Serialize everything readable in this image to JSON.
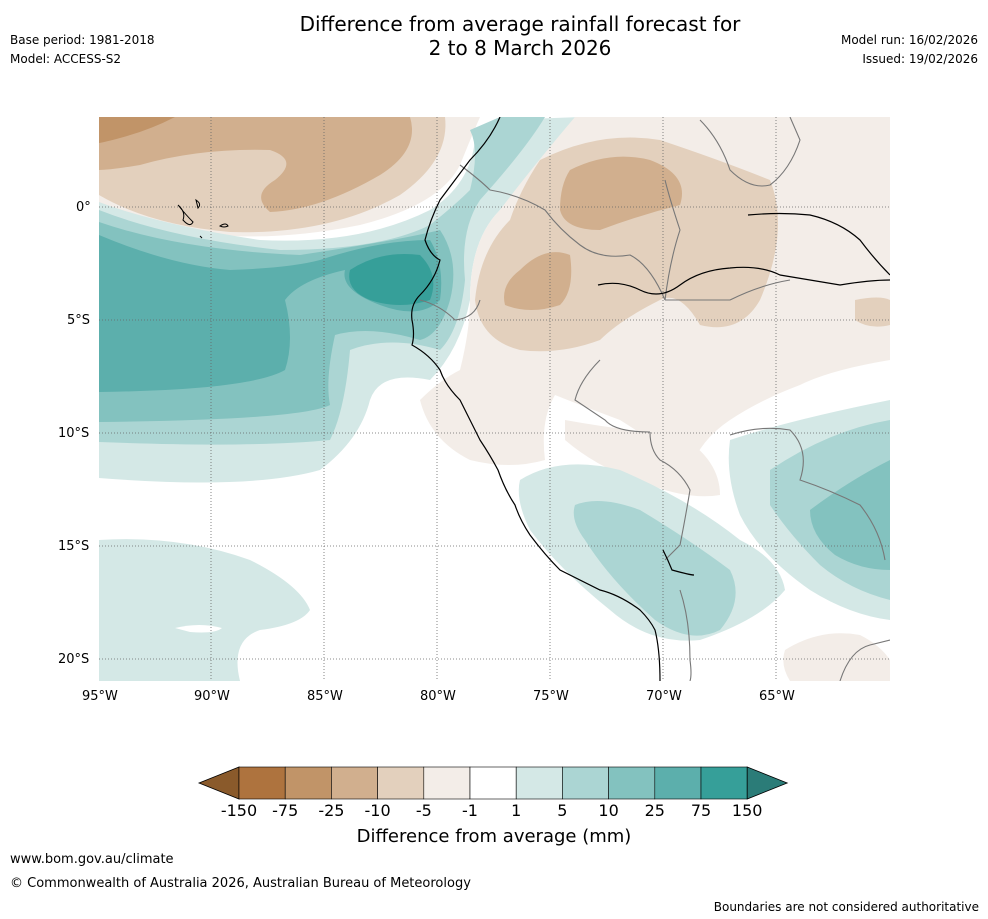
{
  "header": {
    "title_line1": "Difference from average rainfall forecast for",
    "title_line2": "2 to 8 March 2026",
    "base_period": "Base period: 1981-2018",
    "model": "Model: ACCESS-S2",
    "model_run": "Model run: 16/02/2026",
    "issued": "Issued: 19/02/2026"
  },
  "map": {
    "region": "Western South America and eastern Pacific",
    "lat_labels": [
      "0°",
      "5°S",
      "10°S",
      "15°S",
      "20°S"
    ],
    "lon_labels": [
      "95°W",
      "90°W",
      "85°W",
      "80°W",
      "75°W",
      "70°W",
      "65°W"
    ]
  },
  "colorbar": {
    "title": "Difference from average (mm)",
    "tick_labels": [
      "-150",
      "-75",
      "-25",
      "-10",
      "-5",
      "-1",
      "1",
      "5",
      "10",
      "25",
      "75",
      "150"
    ],
    "colors": [
      "#8a5a2b",
      "#ae733e",
      "#c19468",
      "#d1af8e",
      "#e3d0bd",
      "#f3ede8",
      "#ffffff",
      "#d4e8e6",
      "#abd5d3",
      "#83c2bf",
      "#5cafac",
      "#369f99",
      "#2b7c78"
    ]
  },
  "footer": {
    "website": "www.bom.gov.au/climate",
    "copyright": "© Commonwealth of Australia 2026, Australian Bureau of Meteorology",
    "disclaimer": "Boundaries are not considered authoritative"
  }
}
